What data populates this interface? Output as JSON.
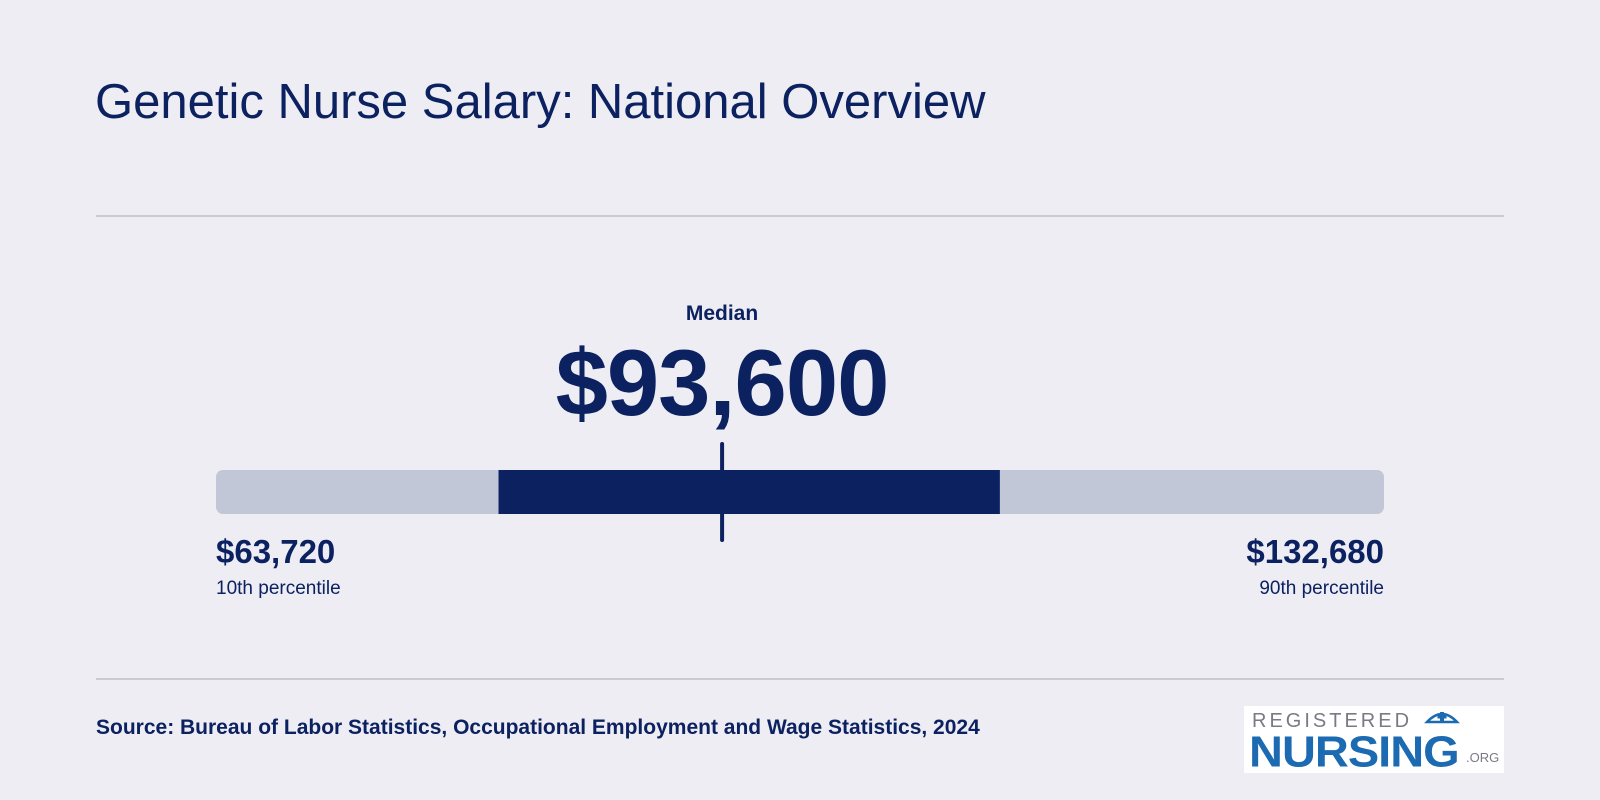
{
  "title": "Genetic Nurse Salary: National Overview",
  "chart_data": {
    "type": "range",
    "median_label": "Median",
    "median": 93600,
    "median_display": "$93,600",
    "p10": 63720,
    "p10_display": "$63,720",
    "p10_label": "10th percentile",
    "p90": 132680,
    "p90_display": "$132,680",
    "p90_label": "90th percentile",
    "iqr_low": 80400,
    "iqr_high": 110000
  },
  "source": "Source: Bureau of Labor Statistics, Occupational Employment and Wage Statistics, 2024",
  "logo": {
    "line1": "REGISTERED",
    "line2": "NURSING",
    "suffix": ".ORG"
  },
  "colors": {
    "background": "#ededf3",
    "primary": "#0c2160",
    "track": "#c2c7d8",
    "logo_blue": "#1c6bb2"
  }
}
